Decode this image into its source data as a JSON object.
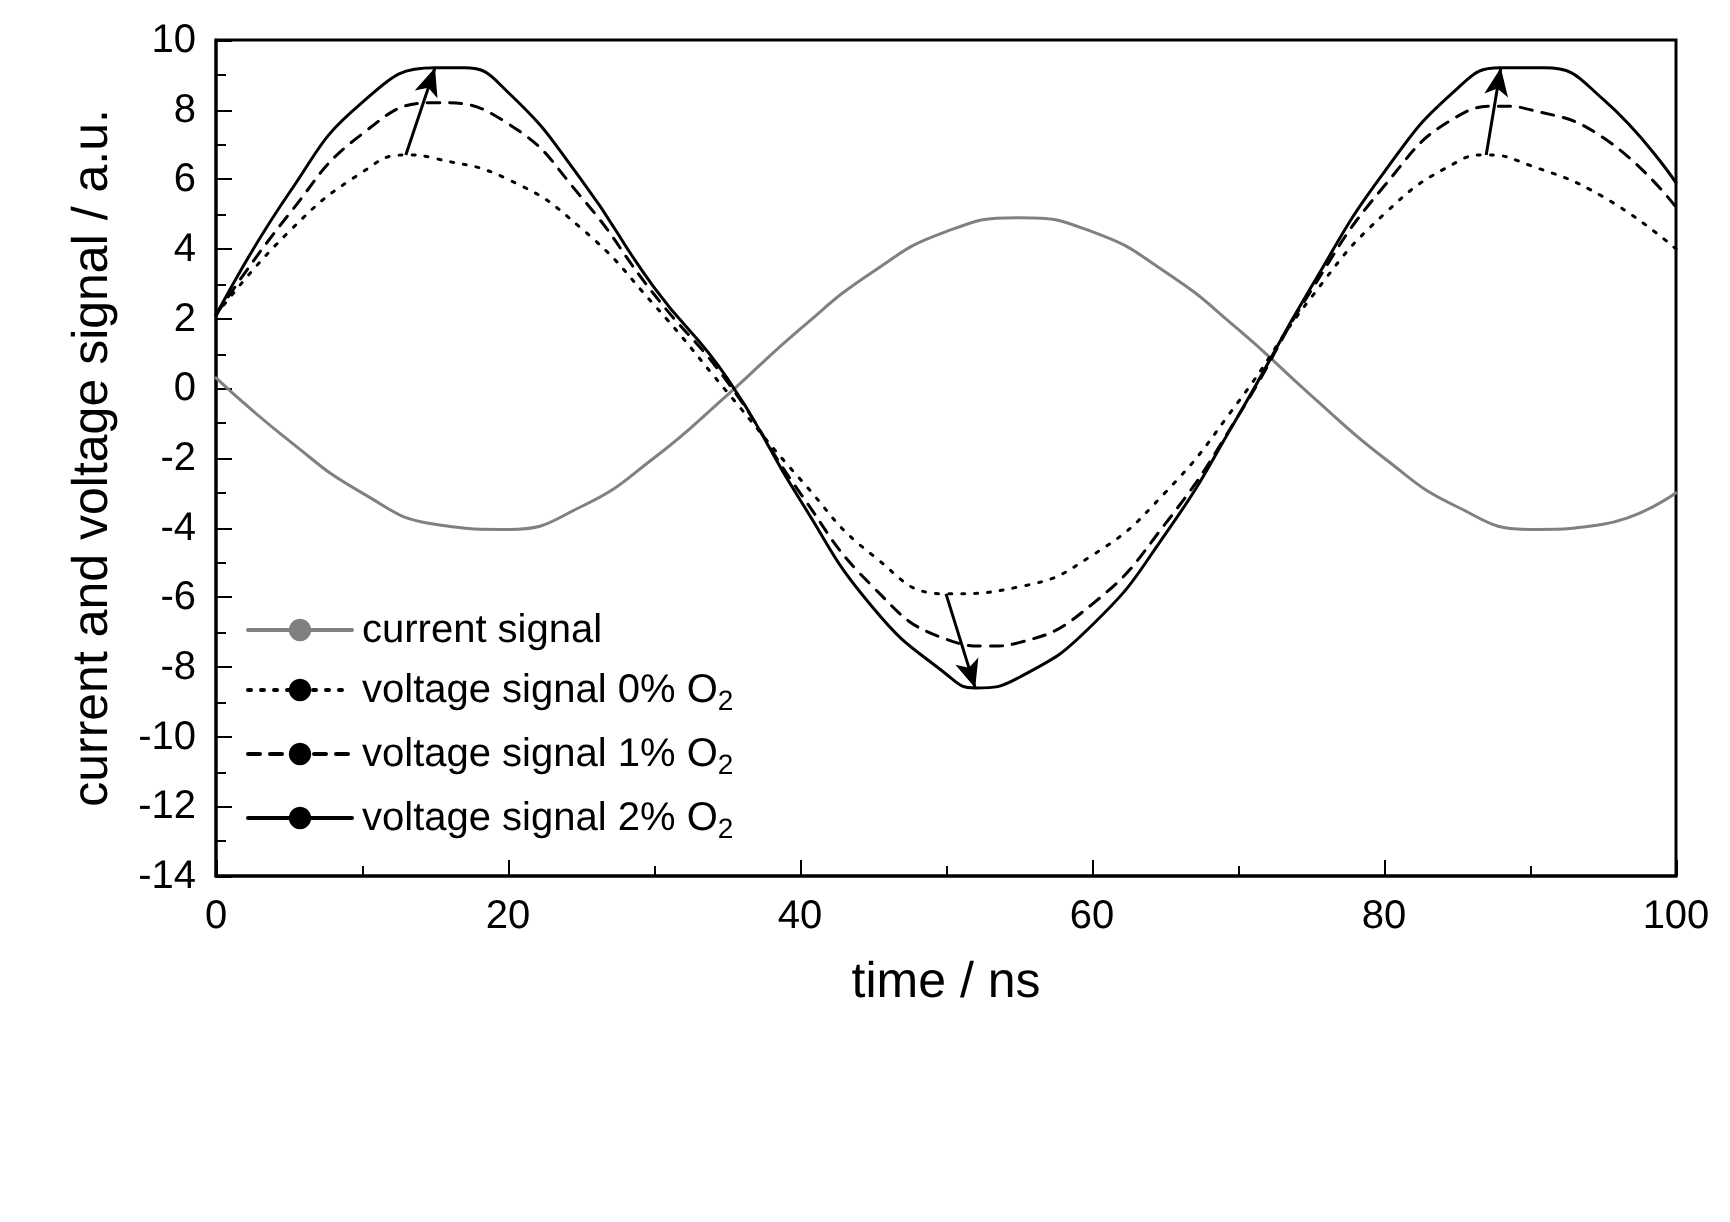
{
  "chart_data": {
    "type": "line",
    "xlabel": "time / ns",
    "ylabel": "current and voltage signal / a.u.",
    "xlim": [
      0,
      100
    ],
    "xticks": [
      0,
      20,
      40,
      60,
      80,
      100
    ],
    "ylim": [
      -14,
      10
    ],
    "yticks": [
      -14,
      -12,
      -10,
      -8,
      -6,
      -4,
      -2,
      0,
      2,
      4,
      6,
      8,
      10
    ],
    "grid": false,
    "legend": "bottom left",
    "marker": "none",
    "series": [
      {
        "name": "current signal",
        "color": "#808080",
        "line_style": "solid",
        "x": [
          0,
          5,
          10,
          15,
          20,
          25,
          30,
          35,
          40,
          45,
          50,
          55,
          60,
          65,
          70,
          75,
          80,
          85,
          90,
          95,
          100
        ],
        "values": [
          0.3,
          -1.5,
          -3.0,
          -3.9,
          -4.05,
          -3.4,
          -2.0,
          -0.2,
          1.7,
          3.35,
          4.5,
          4.9,
          4.5,
          3.35,
          1.7,
          -0.2,
          -2.0,
          -3.4,
          -4.05,
          -3.9,
          -3.0
        ]
      },
      {
        "name": "voltage signal 0% O$_{2}$",
        "color": "#000000",
        "line_style": "dotted",
        "x": [
          0,
          5,
          10,
          13,
          15,
          20,
          25,
          30,
          35,
          40,
          45,
          50,
          55,
          60,
          65,
          70,
          75,
          80,
          85,
          87,
          90,
          95,
          100
        ],
        "values": [
          2.1,
          4.5,
          6.2,
          6.7,
          6.6,
          6.0,
          4.6,
          2.4,
          -0.1,
          -2.6,
          -4.8,
          -5.9,
          -5.7,
          -4.8,
          -3.0,
          -0.4,
          2.6,
          5.0,
          6.5,
          6.7,
          6.4,
          5.5,
          4.0
        ]
      },
      {
        "name": "voltage signal 1% O$_{2}$",
        "color": "#000000",
        "line_style": "dashed",
        "x": [
          0,
          5,
          10,
          15,
          20,
          25,
          30,
          35,
          40,
          45,
          50,
          53,
          55,
          60,
          65,
          70,
          75,
          80,
          85,
          88,
          90,
          95,
          100
        ],
        "values": [
          2.1,
          5.0,
          7.3,
          8.2,
          7.6,
          5.5,
          2.7,
          0.2,
          -3.0,
          -5.7,
          -7.2,
          -7.4,
          -7.3,
          -6.2,
          -3.9,
          -0.8,
          2.8,
          5.8,
          7.8,
          8.1,
          8.0,
          7.2,
          5.2
        ]
      },
      {
        "name": "voltage signal 2% O$_{2}$",
        "color": "#000000",
        "line_style": "solid",
        "x": [
          0,
          5,
          10,
          15,
          17,
          20,
          25,
          30,
          35,
          40,
          45,
          50,
          52,
          55,
          60,
          65,
          70,
          75,
          80,
          85,
          88,
          91,
          95,
          100
        ],
        "values": [
          2.1,
          5.6,
          8.2,
          9.2,
          9.2,
          8.5,
          6.0,
          2.9,
          0.3,
          -3.2,
          -6.3,
          -8.2,
          -8.6,
          -8.3,
          -6.8,
          -4.2,
          -0.8,
          2.9,
          6.2,
          8.6,
          9.2,
          9.2,
          8.3,
          5.9
        ]
      }
    ]
  }
}
